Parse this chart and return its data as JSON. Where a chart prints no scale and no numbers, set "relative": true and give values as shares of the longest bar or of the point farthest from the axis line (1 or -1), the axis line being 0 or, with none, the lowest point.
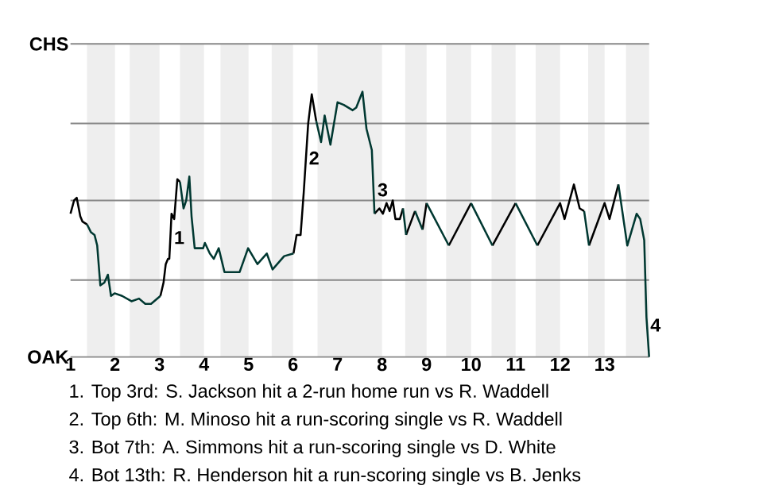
{
  "chart_data": {
    "type": "line",
    "relative": true,
    "xlim": [
      1,
      14
    ],
    "xticks": [
      1,
      2,
      3,
      4,
      5,
      6,
      7,
      8,
      9,
      10,
      11,
      12,
      13
    ],
    "ref_lines": [
      {
        "axis": "y",
        "value": 0,
        "label": "OAK",
        "color": "#888888"
      },
      {
        "axis": "y",
        "value": 0.29,
        "label": null,
        "color": "#888888"
      },
      {
        "axis": "y",
        "value": 0.59,
        "label": null,
        "color": "#888888"
      },
      {
        "axis": "y",
        "value": 0.88,
        "label": null,
        "color": "#888888"
      },
      {
        "axis": "y",
        "value": 1.18,
        "label": "CHS",
        "color": "#888888"
      }
    ],
    "bands": [
      {
        "axis": "x",
        "from": 1.37,
        "to": 2,
        "color": "#eeeeee"
      },
      {
        "axis": "x",
        "from": 2.33,
        "to": 3,
        "color": "#eeeeee"
      },
      {
        "axis": "x",
        "from": 3.46,
        "to": 4,
        "color": "#eeeeee"
      },
      {
        "axis": "x",
        "from": 4.37,
        "to": 5,
        "color": "#eeeeee"
      },
      {
        "axis": "x",
        "from": 5.52,
        "to": 6,
        "color": "#eeeeee"
      },
      {
        "axis": "x",
        "from": 6.55,
        "to": 8,
        "color": "#eeeeee"
      },
      {
        "axis": "x",
        "from": 8.52,
        "to": 9,
        "color": "#eeeeee"
      },
      {
        "axis": "x",
        "from": 9.44,
        "to": 10,
        "color": "#eeeeee"
      },
      {
        "axis": "x",
        "from": 10.46,
        "to": 11,
        "color": "#eeeeee"
      },
      {
        "axis": "x",
        "from": 11.45,
        "to": 12,
        "color": "#eeeeee"
      },
      {
        "axis": "x",
        "from": 12.63,
        "to": 13,
        "color": "#eeeeee"
      },
      {
        "axis": "x",
        "from": 13.48,
        "to": 14,
        "color": "#eeeeee"
      }
    ],
    "series": [
      {
        "color": "#000000",
        "x": [
          1.0,
          1.08,
          1.14,
          1.22,
          1.27,
          1.37,
          null,
          3.02,
          3.09,
          3.14,
          3.19,
          3.22,
          3.27,
          3.33,
          3.4,
          3.46,
          null,
          6.01,
          6.08,
          6.17,
          6.24,
          6.34,
          6.42,
          6.52,
          null,
          7.83,
          7.94,
          8.02,
          8.1,
          8.17,
          8.24,
          8.3,
          8.4,
          8.47,
          null,
          8.54,
          8.74,
          null,
          8.91,
          9.0,
          null,
          9.5,
          10.0,
          null,
          10.48,
          11.0,
          null,
          11.49,
          12.0,
          12.1,
          12.31,
          12.44,
          12.54,
          null,
          12.65,
          13.0,
          13.11,
          13.31
        ],
        "values": [
          0.54,
          0.59,
          0.6,
          0.53,
          0.51,
          0.5,
          null,
          0.23,
          0.28,
          0.35,
          0.37,
          0.37,
          0.54,
          0.52,
          0.67,
          0.66,
          null,
          0.39,
          0.46,
          0.46,
          0.62,
          0.88,
          0.99,
          0.89,
          null,
          0.54,
          0.56,
          0.54,
          0.58,
          0.55,
          0.59,
          0.52,
          0.52,
          0.56,
          null,
          0.46,
          0.55,
          null,
          0.48,
          0.58,
          null,
          0.42,
          0.58,
          null,
          0.42,
          0.58,
          null,
          0.42,
          0.58,
          0.52,
          0.65,
          0.56,
          0.55,
          null,
          0.42,
          0.58,
          0.52,
          0.65
        ]
      },
      {
        "color": "#003831",
        "x": [
          1.37,
          1.46,
          1.54,
          1.6,
          1.67,
          1.76,
          1.84,
          1.91,
          1.99,
          2.16,
          2.37,
          2.54,
          2.68,
          2.81,
          3.02,
          null,
          3.46,
          3.54,
          3.6,
          3.67,
          3.72,
          3.79,
          3.98,
          4.02,
          4.13,
          4.22,
          4.33,
          4.46,
          4.8,
          4.99,
          5.2,
          5.41,
          5.54,
          5.8,
          6.01,
          null,
          6.52,
          6.63,
          6.71,
          6.84,
          7.0,
          7.14,
          7.34,
          7.42,
          7.56,
          7.65,
          7.77,
          7.83,
          null,
          8.47,
          8.54,
          null,
          8.74,
          8.91,
          null,
          9.0,
          9.5,
          null,
          10.0,
          10.48,
          null,
          11.0,
          11.49,
          null,
          12.54,
          12.65,
          null,
          13.31,
          13.51,
          13.72,
          13.8,
          13.89,
          13.94,
          14.0
        ],
        "values": [
          0.5,
          0.47,
          0.46,
          0.42,
          0.27,
          0.28,
          0.31,
          0.23,
          0.24,
          0.23,
          0.21,
          0.22,
          0.2,
          0.2,
          0.23,
          null,
          0.66,
          0.56,
          0.59,
          0.68,
          0.53,
          0.41,
          0.41,
          0.43,
          0.39,
          0.37,
          0.41,
          0.32,
          0.32,
          0.41,
          0.35,
          0.39,
          0.33,
          0.38,
          0.39,
          null,
          0.89,
          0.81,
          0.91,
          0.8,
          0.96,
          0.95,
          0.93,
          0.94,
          1,
          0.86,
          0.78,
          0.54,
          null,
          0.56,
          0.46,
          null,
          0.55,
          0.48,
          null,
          0.58,
          0.42,
          null,
          0.58,
          0.42,
          null,
          0.58,
          0.42,
          null,
          0.55,
          0.42,
          null,
          0.65,
          0.42,
          0.54,
          0.52,
          0.44,
          0.15,
          0
        ]
      }
    ],
    "annotations": [
      {
        "text": "1",
        "x": 3.25,
        "y": 0.45
      },
      {
        "text": "2",
        "x": 6.28,
        "y": 0.75
      },
      {
        "text": "3",
        "x": 7.82,
        "y": 0.63
      },
      {
        "text": "4",
        "x": 13.95,
        "y": 0.12
      },
      "1. Top 3rd: S. Jackson hit a 2-run home run vs R. Waddell",
      "2. Top 6th: M. Minoso hit a run-scoring single vs R. Waddell",
      "3. Bot 7th: A. Simmons hit a run-scoring single vs D. White",
      "4. Bot 13th: R. Henderson hit a run-scoring single vs B. Jenks"
    ]
  }
}
